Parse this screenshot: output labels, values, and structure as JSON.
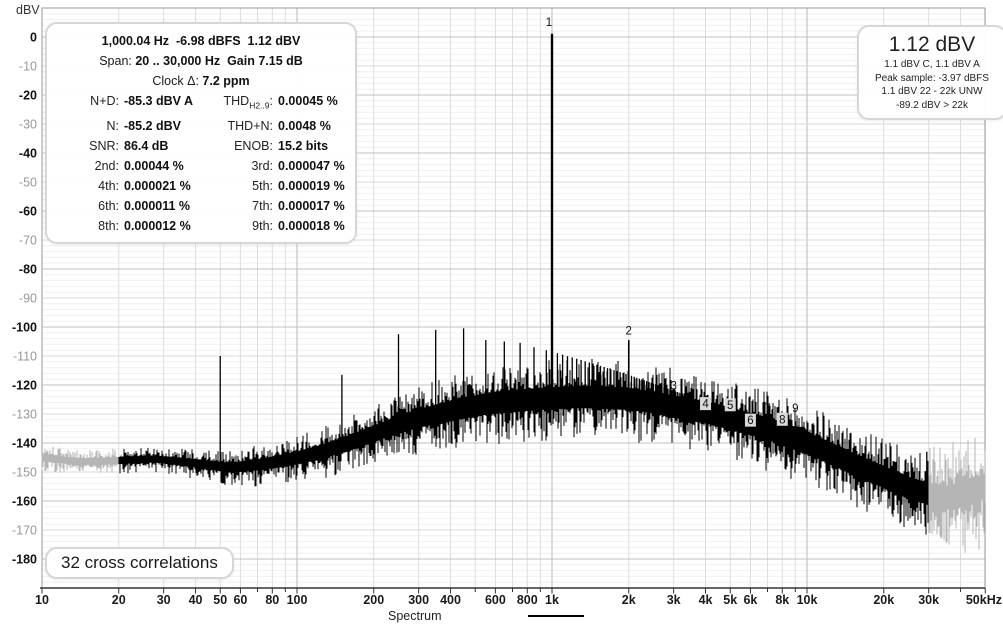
{
  "footer": {
    "correlations": "32 cross correlations"
  },
  "info_panel": {
    "line1": "1,000.04 Hz  -6.98 dBFS  1.12 dBV",
    "line2_label": "Span: ",
    "line2_value": "20 .. 30,000 Hz",
    "line2_gain": "  Gain 7.15 dB",
    "line3_label": "Clock Δ: ",
    "line3_value": "7.2 ppm",
    "grid": [
      {
        "l_label": "N+D:",
        "l_value": "-85.3 dBV A",
        "r_label": "THD",
        "r_sub": "H2..9",
        "r_value": "0.00045 %"
      },
      {
        "l_label": "N:",
        "l_value": "-85.2 dBV",
        "r_label": "THD+N:",
        "r_value": "0.0048 %"
      },
      {
        "l_label": "SNR:",
        "l_value": "86.4 dB",
        "r_label": "ENOB:",
        "r_value": "15.2 bits"
      },
      {
        "l_label": "2nd:",
        "l_value": "0.00044 %",
        "r_label": "3rd:",
        "r_value": "0.000047 %"
      },
      {
        "l_label": "4th:",
        "l_value": "0.000021 %",
        "r_label": "5th:",
        "r_value": "0.000019 %"
      },
      {
        "l_label": "6th:",
        "l_value": "0.000011 %",
        "r_label": "7th:",
        "r_value": "0.000017 %"
      },
      {
        "l_label": "8th:",
        "l_value": "0.000012 %",
        "r_label": "9th:",
        "r_value": "0.000018 %"
      }
    ]
  },
  "level_box": {
    "big": "1.12 dBV",
    "lines": [
      "1.1 dBV C, 1.1 dBV A",
      "Peak sample: -3.97 dBFS",
      "1.1 dBV 22 - 22k UNW",
      "-89.2 dBV > 22k"
    ]
  },
  "chart_data": {
    "type": "line",
    "title": "Spectrum",
    "ylabel": "dBV",
    "x_scale": "log",
    "xlim": [
      10,
      50000
    ],
    "ylim": [
      -190,
      10
    ],
    "span_hz": [
      20,
      30000
    ],
    "grid": "on",
    "legend_position": "bottom-center",
    "trace_color": "#000000",
    "out_of_band_color": "#b5b5b5",
    "y_ticks": {
      "from": 0,
      "to": -180,
      "step": -10,
      "bold_multiple": 20
    },
    "x_ticks": [
      [
        10,
        "10"
      ],
      [
        20,
        "20"
      ],
      [
        30,
        "30"
      ],
      [
        40,
        "40"
      ],
      [
        50,
        "50"
      ],
      [
        60,
        "60"
      ],
      [
        70,
        ""
      ],
      [
        80,
        "80"
      ],
      [
        90,
        ""
      ],
      [
        100,
        "100"
      ],
      [
        200,
        "200"
      ],
      [
        300,
        "300"
      ],
      [
        400,
        "400"
      ],
      [
        500,
        ""
      ],
      [
        600,
        "600"
      ],
      [
        700,
        ""
      ],
      [
        800,
        "800"
      ],
      [
        900,
        ""
      ],
      [
        1000,
        "1k"
      ],
      [
        2000,
        "2k"
      ],
      [
        3000,
        "3k"
      ],
      [
        4000,
        "4k"
      ],
      [
        5000,
        "5k"
      ],
      [
        6000,
        "6k"
      ],
      [
        7000,
        ""
      ],
      [
        8000,
        "8k"
      ],
      [
        9000,
        ""
      ],
      [
        10000,
        "10k"
      ],
      [
        20000,
        "20k"
      ],
      [
        30000,
        "30k"
      ],
      [
        40000,
        ""
      ],
      [
        50000,
        "50kHz"
      ]
    ],
    "noise_floor_dbv": [
      [
        10,
        -145
      ],
      [
        14,
        -146.5
      ],
      [
        20,
        -146
      ],
      [
        28,
        -145.5
      ],
      [
        40,
        -147
      ],
      [
        55,
        -148.5
      ],
      [
        70,
        -147.5
      ],
      [
        90,
        -146
      ],
      [
        120,
        -143.5
      ],
      [
        160,
        -140
      ],
      [
        220,
        -135.5
      ],
      [
        300,
        -131.5
      ],
      [
        400,
        -129
      ],
      [
        550,
        -126.5
      ],
      [
        700,
        -125.5
      ],
      [
        900,
        -124.8
      ],
      [
        1200,
        -124.2
      ],
      [
        1600,
        -124.2
      ],
      [
        2000,
        -124.8
      ],
      [
        2500,
        -126
      ],
      [
        3000,
        -127.5
      ],
      [
        4000,
        -129.5
      ],
      [
        5000,
        -131.5
      ],
      [
        6000,
        -133.5
      ],
      [
        7000,
        -135
      ],
      [
        8000,
        -136.8
      ],
      [
        10000,
        -140
      ],
      [
        12000,
        -143
      ],
      [
        15000,
        -147
      ],
      [
        18000,
        -150
      ],
      [
        21000,
        -152.5
      ],
      [
        25000,
        -155.5
      ],
      [
        30000,
        -157.5
      ],
      [
        35000,
        -158.5
      ],
      [
        42000,
        -157.5
      ],
      [
        50000,
        -155
      ]
    ],
    "peaks": [
      {
        "f": 1000,
        "db": 1.12,
        "label": "1",
        "label_db": 3.8,
        "boxed": false
      },
      {
        "f": 2000,
        "db": -104.5,
        "label": "2",
        "label_db": -102.5,
        "boxed": false
      },
      {
        "f": 3000,
        "db": -123,
        "label": "3",
        "label_db": -121.5,
        "boxed": false
      },
      {
        "f": 4000,
        "db": -129,
        "label": "4",
        "label_db": -127.8,
        "boxed": true
      },
      {
        "f": 5000,
        "db": -130,
        "label": "5",
        "label_db": -128.2,
        "boxed": true
      },
      {
        "f": 6000,
        "db": -133.5,
        "label": "6",
        "label_db": -133.5,
        "boxed": true
      },
      {
        "f": 7000,
        "db": -131.5,
        "label": "7",
        "label_db": -129.3,
        "boxed": false
      },
      {
        "f": 8000,
        "db": -134.5,
        "label": "8",
        "label_db": -133.2,
        "boxed": true
      },
      {
        "f": 9000,
        "db": -132.5,
        "label": "9",
        "label_db": -129.3,
        "boxed": false
      }
    ],
    "spurs": [
      [
        50,
        -110
      ],
      [
        150,
        -116.5
      ],
      [
        250,
        -102.5
      ],
      [
        350,
        -101
      ],
      [
        450,
        -100.5
      ],
      [
        550,
        -104.5
      ],
      [
        650,
        -105
      ],
      [
        750,
        -105.5
      ],
      [
        850,
        -107
      ],
      [
        950,
        -108
      ],
      [
        29500,
        -143
      ]
    ],
    "mains_comb": {
      "step": 50,
      "from": 1050,
      "to": 4950,
      "skip_multiple": 1000,
      "envelope": [
        [
          1050,
          -109
        ],
        [
          1500,
          -113
        ],
        [
          2000,
          -116.5
        ],
        [
          2500,
          -119.5
        ],
        [
          3000,
          -122
        ],
        [
          3500,
          -124
        ],
        [
          4000,
          -126.5
        ],
        [
          4950,
          -130.5
        ]
      ]
    }
  }
}
